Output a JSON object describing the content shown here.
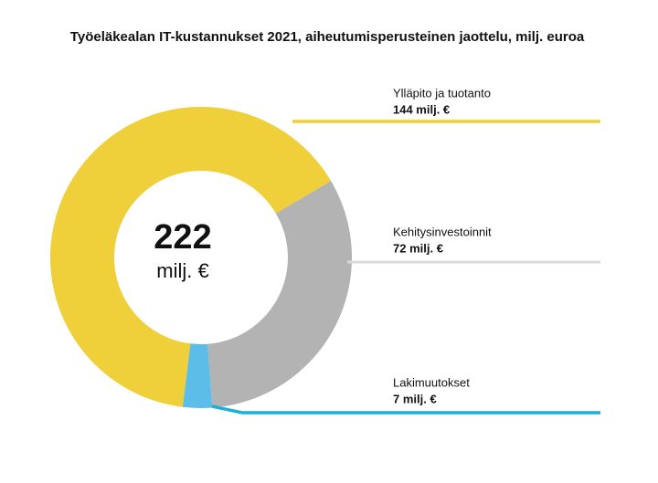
{
  "chart_data": {
    "type": "donut",
    "title": "Työeläkealan IT-kustannukset 2021, aiheutumisperusteinen jaottelu, milj. euroa",
    "categories": [
      "Ylläpito ja tuotanto",
      "Kehitysinvestoinnit",
      "Lakimuutokset"
    ],
    "values": [
      144,
      72,
      7
    ],
    "value_labels": [
      "144 milj. €",
      "72 milj. €",
      "7 milj. €"
    ],
    "colors": [
      "#f0d03a",
      "#b3b3b3",
      "#5bbde8"
    ],
    "line_colors": [
      "#f0d03a",
      "#d9d9d9",
      "#1ab0d8"
    ],
    "center_value": 222,
    "center_unit": "milj. €"
  }
}
